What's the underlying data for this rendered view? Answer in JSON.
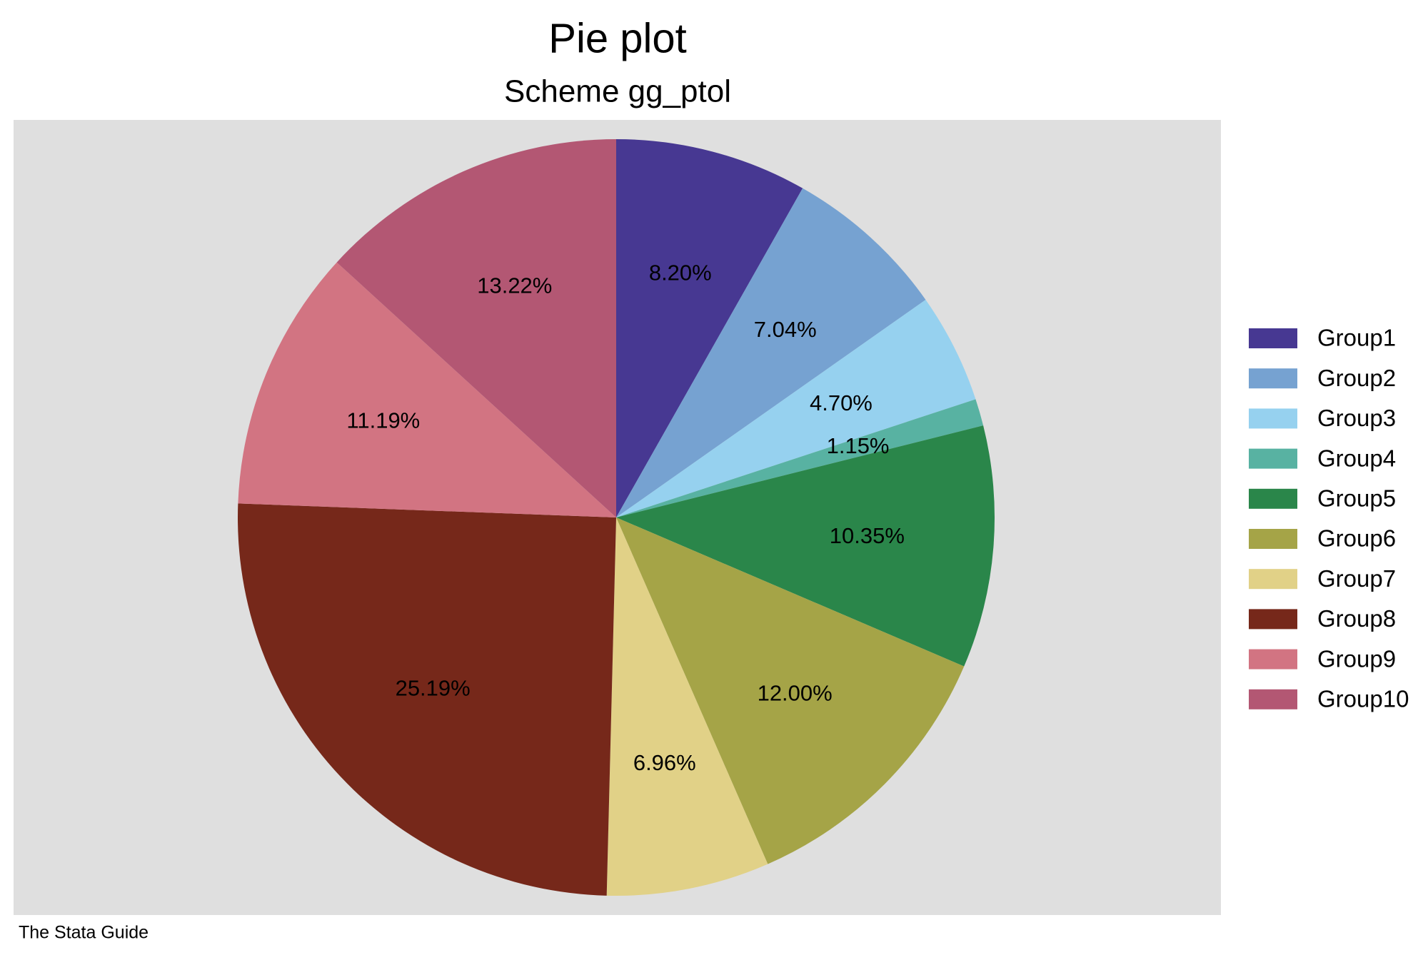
{
  "chart_data": {
    "type": "pie",
    "title": "Pie plot",
    "subtitle": "Scheme gg_ptol",
    "note": "The Stata Guide",
    "categories": [
      "Group1",
      "Group2",
      "Group3",
      "Group4",
      "Group5",
      "Group6",
      "Group7",
      "Group8",
      "Group9",
      "Group10"
    ],
    "values": [
      8.2,
      7.04,
      4.7,
      1.15,
      10.35,
      12,
      6.96,
      25.19,
      11.19,
      13.22
    ],
    "value_labels": [
      "8.20%",
      "7.04%",
      "4.70%",
      "1.15%",
      "10.35%",
      "12.00%",
      "6.96%",
      "25.19%",
      "11.19%",
      "13.22%"
    ],
    "colors": [
      "#473892",
      "#76a2d1",
      "#96d1ef",
      "#58b2a2",
      "#2a864a",
      "#a5a447",
      "#e1d187",
      "#76281a",
      "#d27482",
      "#b35773"
    ],
    "legend": "right"
  }
}
